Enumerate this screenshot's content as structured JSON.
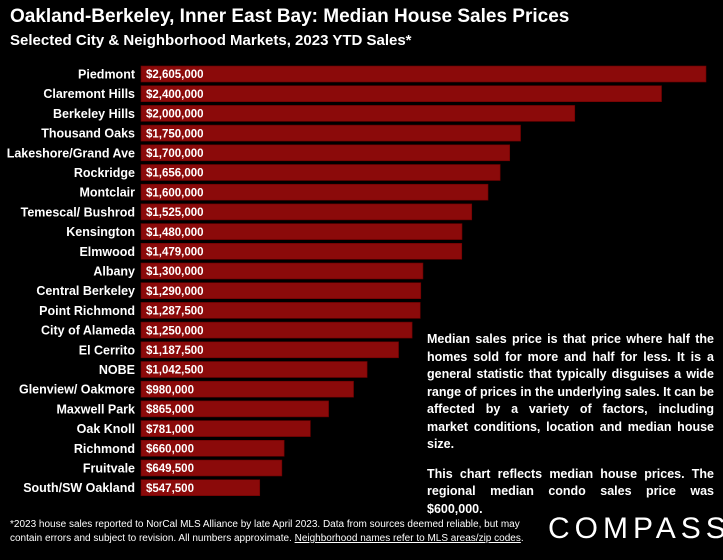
{
  "header": {
    "title": "Oakland-Berkeley, Inner East Bay: Median House Sales Prices",
    "subtitle": "Selected City & Neighborhood Markets, 2023 YTD Sales*"
  },
  "chart_data": {
    "type": "bar",
    "orientation": "horizontal",
    "categories": [
      "Piedmont",
      "Claremont Hills",
      "Berkeley Hills",
      "Thousand Oaks",
      "Lakeshore/Grand Ave",
      "Rockridge",
      "Montclair",
      "Temescal/ Bushrod",
      "Kensington",
      "Elmwood",
      "Albany",
      "Central Berkeley",
      "Point Richmond",
      "City of Alameda",
      "El Cerrito",
      "NOBE",
      "Glenview/ Oakmore",
      "Maxwell Park",
      "Oak Knoll",
      "Richmond",
      "Fruitvale",
      "South/SW Oakland"
    ],
    "values": [
      2605000,
      2400000,
      2000000,
      1750000,
      1700000,
      1656000,
      1600000,
      1525000,
      1480000,
      1479000,
      1300000,
      1290000,
      1287500,
      1250000,
      1187500,
      1042500,
      980000,
      865000,
      781000,
      660000,
      649500,
      547500
    ],
    "value_labels": [
      "$2,605,000",
      "$2,400,000",
      "$2,000,000",
      "$1,750,000",
      "$1,700,000",
      "$1,656,000",
      "$1,600,000",
      "$1,525,000",
      "$1,480,000",
      "$1,479,000",
      "$1,300,000",
      "$1,290,000",
      "$1,287,500",
      "$1,250,000",
      "$1,187,500",
      "$1,042,500",
      "$980,000",
      "$865,000",
      "$781,000",
      "$660,000",
      "$649,500",
      "$547,500"
    ],
    "bar_color": "#8b0a0a",
    "xlim": [
      0,
      2605000
    ],
    "grid": false
  },
  "notes": {
    "p1": "Median sales price is that price where half the homes sold for more and half for less. It is a general statistic that typically disguises a wide range of prices in the underlying sales. It can be affected by a variety of factors, including market conditions, location and median house size.",
    "p2": "This chart reflects median house prices. The regional median condo sales price was $600,000."
  },
  "footer": {
    "footnote_main": "*2023 house sales reported to NorCal MLS Alliance by late April 2023. Data from sources deemed reliable, but may contain errors and subject to revision. All numbers approximate. ",
    "footnote_link": "Neighborhood names refer to MLS areas/zip codes",
    "footnote_end": ".",
    "logo": "COMPASS"
  }
}
